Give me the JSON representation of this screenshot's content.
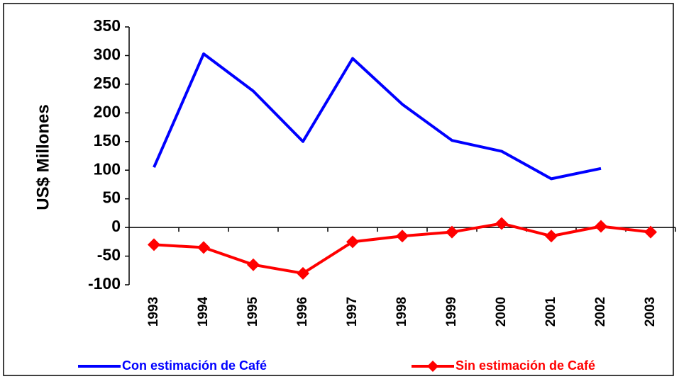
{
  "chart_data": {
    "type": "line",
    "y_label": "US$ Millones",
    "categories": [
      "1993",
      "1994",
      "1995",
      "1996",
      "1997",
      "1998",
      "1999",
      "2000",
      "2001",
      "2002",
      "2003"
    ],
    "series": [
      {
        "name": "Con estimación de Café",
        "color": "#0000ff",
        "marker": "none",
        "values": [
          105,
          303,
          238,
          150,
          295,
          215,
          152,
          133,
          85,
          103,
          null
        ]
      },
      {
        "name": "Sin estimación de Café",
        "color": "#ff0000",
        "marker": "diamond",
        "values": [
          -30,
          -35,
          -65,
          -80,
          -25,
          -15,
          -8,
          7,
          -15,
          2,
          -8
        ]
      }
    ],
    "ylim": [
      -100,
      350
    ],
    "yticks": [
      -100,
      -50,
      0,
      50,
      100,
      150,
      200,
      250,
      300,
      350
    ],
    "grid": false,
    "legend": "bottom"
  }
}
